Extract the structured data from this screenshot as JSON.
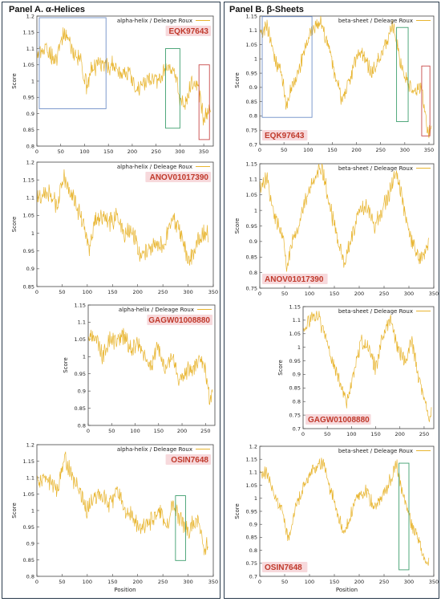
{
  "panels": [
    {
      "title": "Panel A. α-Helices"
    },
    {
      "title": "Panel B. β-Sheets"
    }
  ],
  "colors": {
    "line": "#e8b530",
    "blue_box": "#6f8fc8",
    "green_box": "#3f9f6f",
    "red_box": "#c84a4a",
    "id_label": "#c0392b",
    "id_bg": "#f7d9dc"
  },
  "chart_data": [
    {
      "id": "A1",
      "type": "line",
      "legend": "alpha-helix / Deleage  Roux",
      "label": "EQK97643",
      "ylabel": "Score",
      "xlabel": "",
      "xlim": [
        0,
        370
      ],
      "ylim": [
        0.8,
        1.2
      ],
      "xticks": [
        0,
        50,
        100,
        150,
        200,
        250,
        300,
        350
      ],
      "yticks": [
        0.8,
        0.85,
        0.9,
        0.95,
        1,
        1.05,
        1.1,
        1.15,
        1.2
      ],
      "n": 365,
      "keypoints": [
        [
          0,
          1.08
        ],
        [
          20,
          1.1
        ],
        [
          40,
          1.06
        ],
        [
          55,
          1.15
        ],
        [
          65,
          1.13
        ],
        [
          75,
          1.09
        ],
        [
          90,
          1.07
        ],
        [
          105,
          0.98
        ],
        [
          115,
          1.04
        ],
        [
          130,
          1.05
        ],
        [
          145,
          1.04
        ],
        [
          160,
          1.05
        ],
        [
          175,
          1.02
        ],
        [
          190,
          1.03
        ],
        [
          205,
          0.98
        ],
        [
          215,
          0.98
        ],
        [
          230,
          1.0
        ],
        [
          245,
          1.01
        ],
        [
          260,
          1.0
        ],
        [
          270,
          1.05
        ],
        [
          280,
          1.04
        ],
        [
          290,
          1.03
        ],
        [
          300,
          0.95
        ],
        [
          310,
          0.93
        ],
        [
          320,
          0.98
        ],
        [
          330,
          1.0
        ],
        [
          340,
          0.97
        ],
        [
          350,
          0.88
        ],
        [
          360,
          0.9
        ]
      ],
      "boxes": [
        {
          "x": [
            5,
            145
          ],
          "y": [
            0.915,
            1.195
          ],
          "color": "blue"
        },
        {
          "x": [
            270,
            300
          ],
          "y": [
            0.855,
            1.1
          ],
          "color": "green"
        },
        {
          "x": [
            340,
            362
          ],
          "y": [
            0.82,
            1.05
          ],
          "color": "red"
        }
      ]
    },
    {
      "id": "A2",
      "type": "line",
      "legend": "alpha-helix / Deleage  Roux",
      "label": "ANOV01017390",
      "ylabel": "Score",
      "xlabel": "",
      "xlim": [
        0,
        350
      ],
      "ylim": [
        0.85,
        1.2
      ],
      "xticks": [
        0,
        50,
        100,
        150,
        200,
        250,
        300,
        350
      ],
      "yticks": [
        0.85,
        0.9,
        0.95,
        1,
        1.05,
        1.1,
        1.15,
        1.2
      ],
      "n": 340,
      "keypoints": [
        [
          0,
          1.09
        ],
        [
          20,
          1.12
        ],
        [
          40,
          1.08
        ],
        [
          55,
          1.16
        ],
        [
          65,
          1.12
        ],
        [
          80,
          1.07
        ],
        [
          95,
          1.02
        ],
        [
          105,
          0.96
        ],
        [
          115,
          1.04
        ],
        [
          130,
          1.05
        ],
        [
          145,
          1.03
        ],
        [
          160,
          1.05
        ],
        [
          175,
          1.0
        ],
        [
          190,
          1.01
        ],
        [
          205,
          0.94
        ],
        [
          215,
          0.95
        ],
        [
          230,
          0.97
        ],
        [
          245,
          0.96
        ],
        [
          260,
          1.0
        ],
        [
          270,
          1.05
        ],
        [
          285,
          1.0
        ],
        [
          300,
          0.92
        ],
        [
          310,
          0.94
        ],
        [
          320,
          0.98
        ],
        [
          335,
          1.0
        ]
      ],
      "boxes": []
    },
    {
      "id": "A3",
      "type": "line",
      "legend": "alpha-helix / Deleage  Roux",
      "label": "GAGW01008880",
      "ylabel": "Score",
      "xlabel": "",
      "xlim": [
        0,
        270
      ],
      "ylim": [
        0.8,
        1.15
      ],
      "xticks": [
        0,
        50,
        100,
        150,
        200,
        250
      ],
      "yticks": [
        0.8,
        0.85,
        0.9,
        0.95,
        1,
        1.05,
        1.1,
        1.15
      ],
      "n": 265,
      "keypoints": [
        [
          0,
          1.05
        ],
        [
          15,
          1.06
        ],
        [
          30,
          1.0
        ],
        [
          45,
          1.05
        ],
        [
          60,
          1.04
        ],
        [
          75,
          1.06
        ],
        [
          90,
          1.02
        ],
        [
          105,
          1.04
        ],
        [
          120,
          1.01
        ],
        [
          135,
          0.97
        ],
        [
          150,
          1.03
        ],
        [
          165,
          0.96
        ],
        [
          180,
          1.0
        ],
        [
          195,
          0.92
        ],
        [
          210,
          0.96
        ],
        [
          225,
          0.97
        ],
        [
          240,
          1.0
        ],
        [
          250,
          0.95
        ],
        [
          258,
          0.88
        ],
        [
          265,
          0.9
        ]
      ],
      "boxes": []
    },
    {
      "id": "A4",
      "type": "line",
      "legend": "alpha-helix / Deleage  Roux",
      "label": "OSIN7648",
      "ylabel": "Score",
      "xlabel": "Position",
      "xlim": [
        0,
        350
      ],
      "ylim": [
        0.8,
        1.2
      ],
      "xticks": [
        0,
        50,
        100,
        150,
        200,
        250,
        300,
        350
      ],
      "yticks": [
        0.8,
        0.85,
        0.9,
        0.95,
        1,
        1.05,
        1.1,
        1.15,
        1.2
      ],
      "n": 340,
      "keypoints": [
        [
          0,
          1.09
        ],
        [
          20,
          1.1
        ],
        [
          40,
          1.06
        ],
        [
          55,
          1.16
        ],
        [
          70,
          1.1
        ],
        [
          85,
          1.06
        ],
        [
          100,
          1.0
        ],
        [
          115,
          1.05
        ],
        [
          130,
          1.04
        ],
        [
          145,
          1.02
        ],
        [
          160,
          1.06
        ],
        [
          175,
          1.0
        ],
        [
          190,
          0.98
        ],
        [
          205,
          0.94
        ],
        [
          215,
          0.96
        ],
        [
          230,
          0.97
        ],
        [
          245,
          1.0
        ],
        [
          260,
          0.95
        ],
        [
          270,
          1.02
        ],
        [
          285,
          0.97
        ],
        [
          300,
          0.94
        ],
        [
          310,
          0.96
        ],
        [
          320,
          0.97
        ],
        [
          332,
          0.88
        ],
        [
          340,
          0.9
        ]
      ],
      "boxes": [
        {
          "x": [
            275,
            295
          ],
          "y": [
            0.848,
            1.045
          ],
          "color": "green"
        }
      ]
    },
    {
      "id": "B1",
      "type": "line",
      "legend": "beta-sheet / Deleage  Roux",
      "label": "EQK97643",
      "ylabel": "Score",
      "xlabel": "",
      "xlim": [
        0,
        360
      ],
      "ylim": [
        0.7,
        1.15
      ],
      "xticks": [
        0,
        50,
        100,
        150,
        200,
        250,
        300,
        350
      ],
      "yticks": [
        0.7,
        0.75,
        0.8,
        0.85,
        0.9,
        0.95,
        1,
        1.05,
        1.1,
        1.15
      ],
      "n": 355,
      "keypoints": [
        [
          0,
          1.08
        ],
        [
          15,
          1.12
        ],
        [
          30,
          1.0
        ],
        [
          45,
          0.95
        ],
        [
          55,
          0.83
        ],
        [
          65,
          0.9
        ],
        [
          80,
          0.95
        ],
        [
          95,
          1.05
        ],
        [
          110,
          1.1
        ],
        [
          125,
          1.13
        ],
        [
          140,
          1.05
        ],
        [
          155,
          0.95
        ],
        [
          170,
          0.85
        ],
        [
          185,
          0.92
        ],
        [
          200,
          1.0
        ],
        [
          215,
          1.02
        ],
        [
          230,
          0.95
        ],
        [
          245,
          1.0
        ],
        [
          260,
          1.05
        ],
        [
          275,
          1.12
        ],
        [
          290,
          1.0
        ],
        [
          305,
          0.92
        ],
        [
          320,
          0.88
        ],
        [
          335,
          0.9
        ],
        [
          348,
          0.74
        ],
        [
          355,
          0.75
        ]
      ],
      "boxes": [
        {
          "x": [
            5,
            108
          ],
          "y": [
            0.795,
            1.148
          ],
          "color": "blue"
        },
        {
          "x": [
            283,
            307
          ],
          "y": [
            0.78,
            1.11
          ],
          "color": "green"
        },
        {
          "x": [
            335,
            352
          ],
          "y": [
            0.73,
            0.975
          ],
          "color": "red"
        }
      ]
    },
    {
      "id": "B2",
      "type": "line",
      "legend": "beta-sheet / Deleage  Roux",
      "label": "ANOV01017390",
      "ylabel": "Score",
      "xlabel": "",
      "xlim": [
        0,
        350
      ],
      "ylim": [
        0.75,
        1.15
      ],
      "xticks": [
        0,
        50,
        100,
        150,
        200,
        250,
        300,
        350
      ],
      "yticks": [
        0.75,
        0.8,
        0.85,
        0.9,
        0.95,
        1,
        1.05,
        1.1,
        1.15
      ],
      "n": 340,
      "keypoints": [
        [
          0,
          1.08
        ],
        [
          15,
          1.1
        ],
        [
          30,
          0.98
        ],
        [
          45,
          0.92
        ],
        [
          55,
          0.82
        ],
        [
          65,
          0.9
        ],
        [
          80,
          0.96
        ],
        [
          95,
          1.05
        ],
        [
          110,
          1.1
        ],
        [
          125,
          1.14
        ],
        [
          140,
          1.02
        ],
        [
          155,
          0.92
        ],
        [
          170,
          0.83
        ],
        [
          185,
          0.92
        ],
        [
          200,
          1.0
        ],
        [
          215,
          1.02
        ],
        [
          230,
          0.95
        ],
        [
          245,
          1.0
        ],
        [
          260,
          1.05
        ],
        [
          275,
          1.13
        ],
        [
          290,
          1.0
        ],
        [
          305,
          0.9
        ],
        [
          320,
          0.84
        ],
        [
          335,
          0.88
        ],
        [
          340,
          0.9
        ]
      ],
      "boxes": []
    },
    {
      "id": "B3",
      "type": "line",
      "legend": "beta-sheet / Deleage  Roux",
      "label": "GAGW01008880",
      "ylabel": "Score",
      "xlabel": "",
      "xlim": [
        0,
        270
      ],
      "ylim": [
        0.7,
        1.15
      ],
      "xticks": [
        0,
        50,
        100,
        150,
        200,
        250
      ],
      "yticks": [
        0.7,
        0.75,
        0.8,
        0.85,
        0.9,
        0.95,
        1,
        1.05,
        1.1,
        1.15
      ],
      "n": 265,
      "keypoints": [
        [
          0,
          1.06
        ],
        [
          15,
          1.1
        ],
        [
          30,
          1.12
        ],
        [
          45,
          1.05
        ],
        [
          60,
          0.95
        ],
        [
          75,
          0.88
        ],
        [
          90,
          0.8
        ],
        [
          105,
          0.9
        ],
        [
          120,
          1.02
        ],
        [
          135,
          1.0
        ],
        [
          150,
          0.92
        ],
        [
          165,
          1.05
        ],
        [
          180,
          1.1
        ],
        [
          195,
          1.0
        ],
        [
          210,
          0.95
        ],
        [
          225,
          1.02
        ],
        [
          240,
          0.88
        ],
        [
          252,
          0.8
        ],
        [
          260,
          0.74
        ],
        [
          265,
          0.76
        ]
      ],
      "boxes": []
    },
    {
      "id": "B4",
      "type": "line",
      "legend": "beta-sheet / Deleage  Roux",
      "label": "OSIN7648",
      "ylabel": "Score",
      "xlabel": "Position",
      "xlim": [
        0,
        350
      ],
      "ylim": [
        0.7,
        1.2
      ],
      "xticks": [
        0,
        50,
        100,
        150,
        200,
        250,
        300,
        350
      ],
      "yticks": [
        0.7,
        0.75,
        0.8,
        0.85,
        0.9,
        0.95,
        1,
        1.05,
        1.1,
        1.15,
        1.2
      ],
      "n": 340,
      "keypoints": [
        [
          0,
          1.09
        ],
        [
          15,
          1.1
        ],
        [
          30,
          1.0
        ],
        [
          45,
          0.95
        ],
        [
          58,
          0.84
        ],
        [
          70,
          0.95
        ],
        [
          85,
          1.02
        ],
        [
          100,
          1.1
        ],
        [
          115,
          1.12
        ],
        [
          128,
          1.14
        ],
        [
          140,
          1.05
        ],
        [
          155,
          0.95
        ],
        [
          170,
          0.86
        ],
        [
          185,
          0.95
        ],
        [
          200,
          1.02
        ],
        [
          215,
          1.03
        ],
        [
          230,
          0.96
        ],
        [
          245,
          1.0
        ],
        [
          260,
          1.06
        ],
        [
          275,
          1.13
        ],
        [
          290,
          1.0
        ],
        [
          305,
          0.9
        ],
        [
          318,
          0.85
        ],
        [
          328,
          0.78
        ],
        [
          335,
          0.74
        ],
        [
          340,
          0.76
        ]
      ],
      "boxes": [
        {
          "x": [
            280,
            300
          ],
          "y": [
            0.725,
            1.135
          ],
          "color": "green"
        }
      ]
    }
  ]
}
